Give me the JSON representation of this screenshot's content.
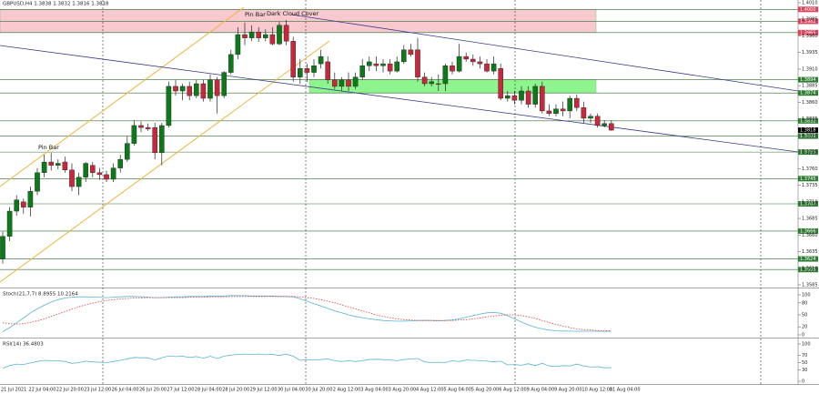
{
  "chart_data": [
    {
      "type": "candlestick",
      "title": "GBPUSD,H4  1.3838 1.3832 1.3816 1.3818",
      "up_color": "#0d7a1a",
      "down_color": "#c8283c",
      "ylim": [
        1.3585,
        1.401
      ],
      "yticks": [
        {
          "value": 1.401,
          "label": "1.4010"
        },
        1.3985,
        {
          "value": 1.396,
          "label": "1.3960"
        },
        1.3935,
        {
          "value": 1.391,
          "label": "1.3910"
        },
        1.3885,
        {
          "value": 1.386,
          "label": "1.3860"
        },
        1.3835,
        {
          "value": 1.381,
          "label": "1.3810"
        },
        1.3785,
        {
          "value": 1.376,
          "label": "1.3760"
        },
        1.3735,
        {
          "value": 1.371,
          "label": "1.3710"
        },
        1.3685,
        {
          "value": 1.366,
          "label": "1.3660"
        },
        1.3635,
        {
          "value": 1.361,
          "label": "1.3610"
        },
        1.3585
      ],
      "grid": false,
      "levels": [
        {
          "value": {
            "value": 1.4,
            "label": "1.4000"
          },
          "color": "#e0405a"
        },
        {
          "value": 1.3982,
          "color": "#e0405a"
        },
        {
          "value": 1.3965,
          "color": "#e0405a"
        },
        {
          "value": 1.3894,
          "color": "#2f7d32"
        },
        {
          "value": 1.3874,
          "color": "#2f7d32"
        },
        {
          "value": 1.3832,
          "color": "#2f7d32"
        },
        {
          "value": 1.3809,
          "color": "#2f7d32"
        },
        {
          "value": 1.3785,
          "color": "#2f7d32"
        },
        {
          "value": 1.3745,
          "color": "#2f7d32"
        },
        {
          "value": 1.3707,
          "color": "#2f7d32"
        },
        {
          "value": 1.3666,
          "color": "#2f7d32"
        },
        {
          "value": 1.3624,
          "color": "#2f7d32"
        },
        {
          "value": 1.3608,
          "color": "#2f7d32"
        }
      ],
      "zones": [
        {
          "from": 1.4,
          "to": 1.3965,
          "color": "#f9c9d0"
        },
        {
          "from": 1.3894,
          "to": 1.3874,
          "color": "#8ef58e"
        }
      ],
      "last": 1.3818,
      "annotations": [
        "Pin Bar",
        "Pin Bar",
        "Dark Cloud Cover"
      ],
      "categories": [
        "21 Jul 2021",
        null,
        null,
        null,
        "22 Jul 04:00",
        null,
        null,
        null,
        "22 Jul 20:00",
        null,
        null,
        null,
        "23 Jul 12:00",
        null,
        null,
        null,
        "26 Jul 04:00",
        null,
        null,
        null,
        "26 Jul 20:00",
        null,
        null,
        null,
        "27 Jul 12:00",
        null,
        null,
        null,
        "28 Jul 04:00",
        null,
        null,
        null,
        "28 Jul 20:00",
        null,
        null,
        null,
        "29 Jul 12:00",
        null,
        null,
        null,
        "30 Jul 04:00",
        null,
        null,
        null,
        "30 Jul 20:00",
        null,
        null,
        null,
        "2 Aug 12:00",
        null,
        null,
        null,
        "3 Aug 04:00",
        null,
        null,
        null,
        "3 Aug 20:00",
        null,
        null,
        null,
        "4 Aug 12:00",
        null,
        null,
        null,
        "5 Aug 04:00",
        null,
        null,
        null,
        "5 Aug 20:00",
        null,
        null,
        null,
        "6 Aug 12:00",
        null,
        null,
        null,
        "9 Aug 04:00",
        null,
        null,
        null,
        "9 Aug 20:00",
        null,
        null,
        null,
        "10 Aug 12:00",
        null,
        null,
        null,
        "11 Aug 04:00"
      ],
      "ohlc": [
        [
          1.3624,
          1.3665,
          1.3617,
          1.3658
        ],
        [
          1.3658,
          1.3702,
          1.3651,
          1.3696
        ],
        [
          1.3696,
          1.372,
          1.3689,
          1.3713
        ],
        [
          1.371,
          1.3715,
          1.3692,
          1.3702
        ],
        [
          1.3702,
          1.3733,
          1.3688,
          1.3726
        ],
        [
          1.3726,
          1.3761,
          1.372,
          1.3754
        ],
        [
          1.3754,
          1.3781,
          1.3747,
          1.377
        ],
        [
          1.377,
          1.3784,
          1.3757,
          1.3765
        ],
        [
          1.3765,
          1.3774,
          1.3759,
          1.3768
        ],
        [
          1.377,
          1.3778,
          1.3754,
          1.3758
        ],
        [
          1.3758,
          1.3768,
          1.3726,
          1.3733
        ],
        [
          1.3733,
          1.3754,
          1.372,
          1.3747
        ],
        [
          1.3747,
          1.377,
          1.374,
          1.3768
        ],
        [
          1.3765,
          1.377,
          1.3747,
          1.3754
        ],
        [
          1.3754,
          1.3761,
          1.3743,
          1.3751
        ],
        [
          1.3751,
          1.3757,
          1.374,
          1.3744
        ],
        [
          1.3744,
          1.3768,
          1.374,
          1.3761
        ],
        [
          1.3761,
          1.3781,
          1.3754,
          1.3774
        ],
        [
          1.3774,
          1.3809,
          1.377,
          1.3798
        ],
        [
          1.3798,
          1.3833,
          1.3795,
          1.3825
        ],
        [
          1.3825,
          1.3831,
          1.3815,
          1.3822
        ],
        [
          1.3822,
          1.3828,
          1.3817,
          1.382
        ],
        [
          1.3822,
          1.3829,
          1.3774,
          1.3784
        ],
        [
          1.3784,
          1.3829,
          1.3765,
          1.3825
        ],
        [
          1.3825,
          1.3891,
          1.3822,
          1.3884
        ],
        [
          1.3884,
          1.3894,
          1.387,
          1.3877
        ],
        [
          1.3877,
          1.3888,
          1.3863,
          1.3884
        ],
        [
          1.3884,
          1.3891,
          1.3863,
          1.387
        ],
        [
          1.387,
          1.3894,
          1.3866,
          1.3888
        ],
        [
          1.3888,
          1.3894,
          1.3861,
          1.3866
        ],
        [
          1.3866,
          1.3902,
          1.3861,
          1.3894
        ],
        [
          1.3894,
          1.3898,
          1.3843,
          1.387
        ],
        [
          1.387,
          1.3907,
          1.3866,
          1.3905
        ],
        [
          1.3905,
          1.3939,
          1.3902,
          1.3932
        ],
        [
          1.3932,
          1.3973,
          1.3925,
          1.3962
        ],
        [
          1.3962,
          1.398,
          1.3946,
          1.3957
        ],
        [
          1.3957,
          1.3976,
          1.3952,
          1.3966
        ],
        [
          1.3966,
          1.3973,
          1.3951,
          1.3957
        ],
        [
          1.3957,
          1.397,
          1.3952,
          1.3962
        ],
        [
          1.3962,
          1.3973,
          1.3946,
          1.3948
        ],
        [
          1.3948,
          1.3981,
          1.3946,
          1.3976
        ],
        [
          1.3976,
          1.3984,
          1.3946,
          1.3952
        ],
        [
          1.3952,
          1.3959,
          1.3891,
          1.3898
        ],
        [
          1.3898,
          1.3925,
          1.3888,
          1.3911
        ],
        [
          1.3911,
          1.3918,
          1.3891,
          1.3905
        ],
        [
          1.3905,
          1.3925,
          1.3898,
          1.3915
        ],
        [
          1.3918,
          1.3939,
          1.3911,
          1.3929
        ],
        [
          1.3921,
          1.3929,
          1.3888,
          1.3894
        ],
        [
          1.3894,
          1.3905,
          1.388,
          1.3884
        ],
        [
          1.3884,
          1.3898,
          1.3877,
          1.3894
        ],
        [
          1.3894,
          1.3905,
          1.3877,
          1.3884
        ],
        [
          1.3884,
          1.3905,
          1.388,
          1.3898
        ],
        [
          1.3898,
          1.3925,
          1.3894,
          1.3915
        ],
        [
          1.3915,
          1.3929,
          1.3907,
          1.3921
        ],
        [
          1.3918,
          1.3929,
          1.3907,
          1.3915
        ],
        [
          1.3915,
          1.3925,
          1.3905,
          1.3918
        ],
        [
          1.3918,
          1.3925,
          1.3902,
          1.3907
        ],
        [
          1.3907,
          1.3929,
          1.3905,
          1.3921
        ],
        [
          1.3921,
          1.3946,
          1.3918,
          1.3939
        ],
        [
          1.3939,
          1.3948,
          1.3929,
          1.3932
        ],
        [
          1.3939,
          1.3957,
          1.3891,
          1.3898
        ],
        [
          1.3898,
          1.3905,
          1.3884,
          1.3888
        ],
        [
          1.3888,
          1.3898,
          1.3884,
          1.3891
        ],
        [
          1.3888,
          1.3902,
          1.3877,
          1.3887
        ],
        [
          1.3888,
          1.3918,
          1.3877,
          1.3915
        ],
        [
          1.3915,
          1.3921,
          1.3902,
          1.3907
        ],
        [
          1.3907,
          1.3948,
          1.3905,
          1.3929
        ],
        [
          1.3929,
          1.3935,
          1.3921,
          1.3925
        ],
        [
          1.3925,
          1.3932,
          1.3915,
          1.3921
        ],
        [
          1.3921,
          1.3929,
          1.3911,
          1.3918
        ],
        [
          1.3918,
          1.3925,
          1.3905,
          1.3907
        ],
        [
          1.3907,
          1.3929,
          1.3902,
          1.3918
        ],
        [
          1.3911,
          1.3918,
          1.3863,
          1.3866
        ],
        [
          1.3866,
          1.3877,
          1.3861,
          1.387
        ],
        [
          1.387,
          1.3877,
          1.3857,
          1.3863
        ],
        [
          1.3863,
          1.3884,
          1.3857,
          1.3877
        ],
        [
          1.3877,
          1.3884,
          1.3852,
          1.3857
        ],
        [
          1.3857,
          1.3888,
          1.3852,
          1.3884
        ],
        [
          1.3884,
          1.3891,
          1.3843,
          1.3847
        ],
        [
          1.3847,
          1.3857,
          1.3839,
          1.3843
        ],
        [
          1.3843,
          1.3857,
          1.3839,
          1.385
        ],
        [
          1.385,
          1.3861,
          1.3839,
          1.3847
        ],
        [
          1.3847,
          1.387,
          1.3836,
          1.3866
        ],
        [
          1.3866,
          1.3872,
          1.3847,
          1.3852
        ],
        [
          1.3852,
          1.3861,
          1.3829,
          1.3836
        ],
        [
          1.3836,
          1.3843,
          1.3829,
          1.3839
        ],
        [
          1.3839,
          1.3843,
          1.3822,
          1.3825
        ],
        [
          1.3825,
          1.3833,
          1.3822,
          1.3828
        ],
        [
          1.3828,
          1.3833,
          1.3817,
          1.3818
        ]
      ]
    },
    {
      "type": "line",
      "title": "Stoch(21,7,7) 8.8955 10.2164",
      "ylim": [
        0,
        100
      ],
      "yticks": [
        0,
        20,
        50,
        80,
        100
      ],
      "series": [
        {
          "color": "#5ab4d6",
          "dash": false,
          "values": [
            8,
            18,
            30,
            42,
            55,
            65,
            74,
            82,
            88,
            92,
            94,
            95,
            95,
            94,
            94,
            93,
            94,
            95,
            96,
            96,
            95,
            94,
            93,
            93,
            94,
            95,
            95,
            96,
            96,
            96,
            97,
            97,
            97,
            98,
            98,
            98,
            97,
            97,
            97,
            97,
            96,
            96,
            95,
            90,
            84,
            78,
            72,
            66,
            60,
            55,
            50,
            46,
            43,
            40,
            38,
            36,
            35,
            34,
            34,
            35,
            36,
            36,
            36,
            35,
            36,
            37,
            40,
            44,
            48,
            52,
            55,
            56,
            54,
            48,
            40,
            32,
            25,
            19,
            15,
            12,
            10,
            9.5,
            9.3,
            9.2,
            9.1,
            9,
            9,
            8.95,
            8.8955
          ]
        },
        {
          "color": "#e04040",
          "dash": true,
          "values": [
            30,
            28,
            27,
            28,
            31,
            35,
            40,
            46,
            52,
            58,
            64,
            70,
            75,
            79,
            83,
            86,
            88,
            90,
            91,
            92,
            92,
            93,
            93,
            93,
            93,
            93,
            93,
            94,
            94,
            94,
            95,
            95,
            95,
            96,
            96,
            96,
            96,
            96,
            96,
            96,
            96,
            96,
            96,
            95,
            93,
            91,
            88,
            84,
            80,
            75,
            70,
            65,
            60,
            55,
            50,
            46,
            43,
            40,
            38,
            37,
            36,
            36,
            36,
            36,
            36,
            36,
            37,
            38,
            40,
            42,
            45,
            47,
            49,
            50,
            50,
            48,
            45,
            41,
            36,
            31,
            26,
            22,
            18,
            15,
            13,
            12,
            11,
            10.5,
            10.2164
          ]
        }
      ]
    },
    {
      "type": "line",
      "title": "RSI(14) 36.4803",
      "ylim": [
        0,
        100
      ],
      "yticks": [
        0,
        30,
        50,
        70,
        100
      ],
      "series": [
        {
          "color": "#5ab4d6",
          "dash": false,
          "values": [
            35,
            42,
            46,
            45,
            49,
            53,
            56,
            55,
            55,
            53,
            48,
            50,
            54,
            52,
            51,
            50,
            53,
            56,
            60,
            64,
            63,
            63,
            57,
            63,
            68,
            66,
            67,
            64,
            66,
            62,
            67,
            61,
            67,
            70,
            72,
            73,
            72,
            73,
            71,
            72,
            69,
            73,
            67,
            56,
            58,
            57,
            58,
            60,
            55,
            53,
            55,
            53,
            55,
            58,
            59,
            58,
            57,
            55,
            58,
            60,
            61,
            52,
            50,
            51,
            50,
            55,
            53,
            57,
            56,
            55,
            54,
            52,
            54,
            44,
            45,
            43,
            47,
            42,
            48,
            41,
            40,
            42,
            41,
            46,
            41,
            38,
            39,
            36,
            36.4803
          ]
        }
      ]
    }
  ]
}
